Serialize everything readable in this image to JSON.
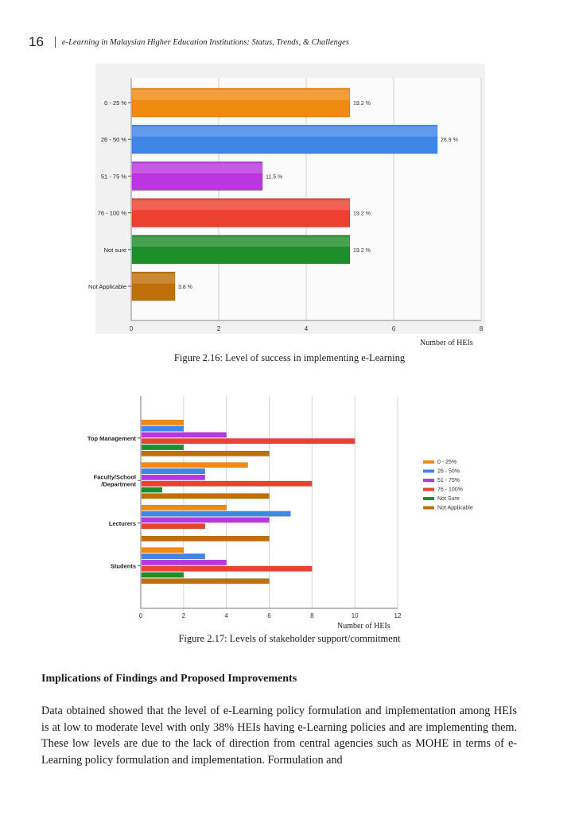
{
  "header": {
    "page_number": "16",
    "running_title": "e-Learning in Malaysian Higher Education Institutions: Status, Trends, & Challenges"
  },
  "figure1": {
    "caption": "Figure 2.16: Level of success in implementing e-Learning",
    "x_axis_title": "Number of HEIs"
  },
  "figure2": {
    "caption": "Figure 2.17: Levels of stakeholder support/commitment",
    "x_axis_title": "Number of HEIs"
  },
  "section": {
    "heading": "Implications of Findings and Proposed Improvements",
    "paragraph": "Data obtained showed that the level of e-Learning policy formulation and implementation among HEIs is at low to moderate level with only 38% HEIs having e-Learning policies and are implementing them. These low levels are due to the lack of direction from central agencies such as MOHE in terms of e-Learning policy formulation and implementation. Formulation and"
  },
  "chart_data": [
    {
      "type": "bar",
      "orientation": "horizontal",
      "categories": [
        "0 - 25 %",
        "26 - 50 %",
        "51 - 75 %",
        "76 - 100 %",
        "Not sure",
        "Not Applicable"
      ],
      "values": [
        5,
        7,
        3,
        5,
        5,
        1
      ],
      "data_labels": [
        "19.2 %",
        "26.9 %",
        "11.5 %",
        "19.2 %",
        "19.2 %",
        "3.8 %"
      ],
      "colors": [
        "#f08a10",
        "#3f86e6",
        "#bb36e0",
        "#ee4030",
        "#1e8e2a",
        "#c0700a"
      ],
      "xlabel": "Number of HEIs",
      "xlim": [
        0,
        8
      ],
      "xticks": [
        "0",
        "2",
        "4",
        "6",
        "8"
      ],
      "grid": true
    },
    {
      "type": "bar",
      "orientation": "horizontal",
      "categories": [
        "Top Management",
        "Faculty/School /Department",
        "Lecturers",
        "Students"
      ],
      "series": [
        {
          "name": "0 - 25%",
          "color": "#f08a10",
          "values": [
            2,
            5,
            4,
            2
          ]
        },
        {
          "name": "26 - 50%",
          "color": "#3f86e6",
          "values": [
            2,
            3,
            7,
            3
          ]
        },
        {
          "name": "51 - 75%",
          "color": "#bb36e0",
          "values": [
            4,
            3,
            6,
            4
          ]
        },
        {
          "name": "76 - 100%",
          "color": "#ee4030",
          "values": [
            10,
            8,
            3,
            8
          ]
        },
        {
          "name": "Not Sure",
          "color": "#1e8e2a",
          "values": [
            2,
            1,
            0,
            2
          ]
        },
        {
          "name": "Not Applicable",
          "color": "#c0700a",
          "values": [
            6,
            6,
            6,
            6
          ]
        }
      ],
      "xlabel": "Number of HEIs",
      "xlim": [
        0,
        12
      ],
      "xticks": [
        "0",
        "2",
        "4",
        "6",
        "8",
        "10",
        "12"
      ],
      "grid": true,
      "legend": "right"
    }
  ]
}
